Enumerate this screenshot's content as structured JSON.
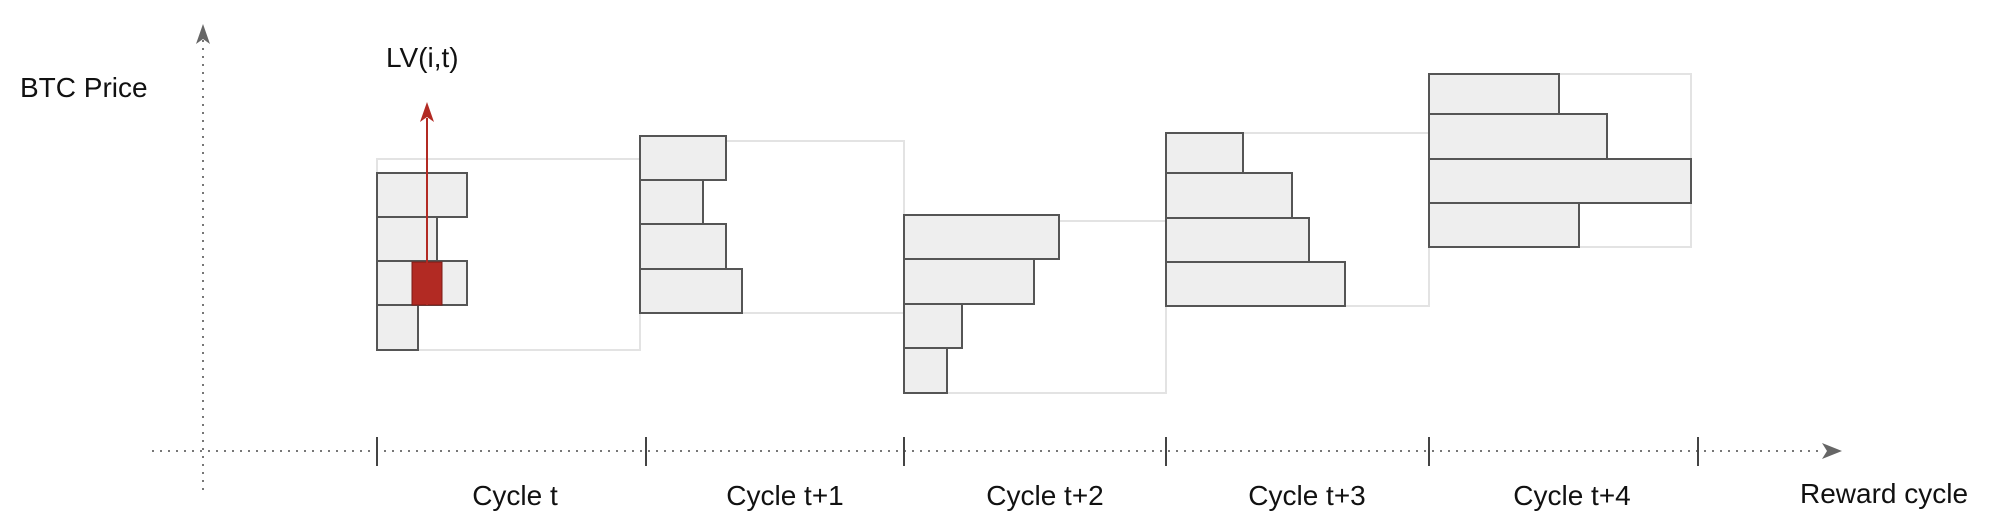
{
  "labels": {
    "y_axis": "BTC Price",
    "x_axis": "Reward cycle",
    "arrow": "LV(i,t)"
  },
  "cycles": [
    {
      "label": "Cycle t"
    },
    {
      "label": "Cycle t+1"
    },
    {
      "label": "Cycle t+2"
    },
    {
      "label": "Cycle t+3"
    },
    {
      "label": "Cycle t+4"
    }
  ],
  "colors": {
    "bar_fill": "#eeeeee",
    "bar_stroke": "#555555",
    "range_box": "#e3e3e3",
    "highlight": "#b22a23",
    "axis": "#666666"
  }
}
